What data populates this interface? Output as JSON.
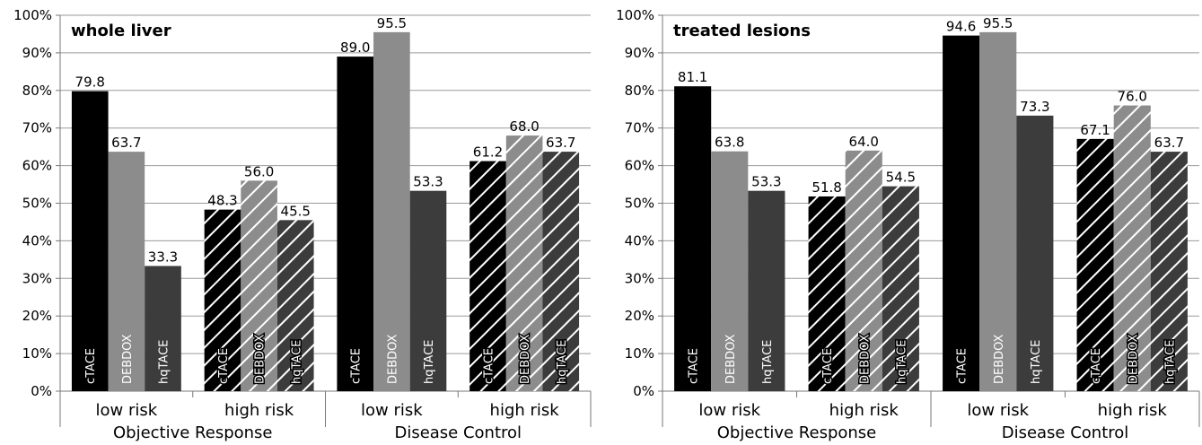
{
  "chart_data": [
    {
      "type": "bar",
      "title": "whole liver",
      "ylim": [
        0,
        100
      ],
      "y_ticks": [
        "0%",
        "10%",
        "20%",
        "30%",
        "40%",
        "50%",
        "60%",
        "70%",
        "80%",
        "90%",
        "100%"
      ],
      "series_labels": [
        "cTACE",
        "DEBDOX",
        "hqTACE"
      ],
      "groups": [
        {
          "category": "low risk",
          "outcome": "Objective Response",
          "pattern": "solid",
          "values": [
            79.8,
            63.7,
            33.3
          ],
          "labels": [
            "79.8",
            "63.7",
            "33.3"
          ]
        },
        {
          "category": "high risk",
          "outcome": "Objective Response",
          "pattern": "hatched",
          "values": [
            48.3,
            56.0,
            45.5
          ],
          "labels": [
            "48.3",
            "56.0",
            "45.5"
          ]
        },
        {
          "category": "low risk",
          "outcome": "Disease Control",
          "pattern": "solid",
          "values": [
            89.0,
            95.5,
            53.3
          ],
          "labels": [
            "89.0",
            "95.5",
            "53.3"
          ]
        },
        {
          "category": "high risk",
          "outcome": "Disease Control",
          "pattern": "hatched",
          "values": [
            61.2,
            68.0,
            63.7
          ],
          "labels": [
            "61.2",
            "68.0",
            "63.7"
          ]
        }
      ],
      "outcome_labels": [
        "Objective Response",
        "Disease Control"
      ],
      "colors": [
        "#000000",
        "#8c8c8c",
        "#3c3c3c"
      ],
      "grid": true
    },
    {
      "type": "bar",
      "title": "treated lesions",
      "ylim": [
        0,
        100
      ],
      "y_ticks": [
        "0%",
        "10%",
        "20%",
        "30%",
        "40%",
        "50%",
        "60%",
        "70%",
        "80%",
        "90%",
        "100%"
      ],
      "series_labels": [
        "cTACE",
        "DEBDOX",
        "hqTACE"
      ],
      "groups": [
        {
          "category": "low risk",
          "outcome": "Objective Response",
          "pattern": "solid",
          "values": [
            81.1,
            63.8,
            53.3
          ],
          "labels": [
            "81.1",
            "63.8",
            "53.3"
          ]
        },
        {
          "category": "high risk",
          "outcome": "Objective Response",
          "pattern": "hatched",
          "values": [
            51.8,
            64.0,
            54.5
          ],
          "labels": [
            "51.8",
            "64.0",
            "54.5"
          ]
        },
        {
          "category": "low risk",
          "outcome": "Disease Control",
          "pattern": "solid",
          "values": [
            94.6,
            95.5,
            73.3
          ],
          "labels": [
            "94.6",
            "95.5",
            "73.3"
          ]
        },
        {
          "category": "high risk",
          "outcome": "Disease Control",
          "pattern": "hatched",
          "values": [
            67.1,
            76.0,
            63.7
          ],
          "labels": [
            "67.1",
            "76.0",
            "63.7"
          ]
        }
      ],
      "outcome_labels": [
        "Objective Response",
        "Disease Control"
      ],
      "colors": [
        "#000000",
        "#8c8c8c",
        "#3c3c3c"
      ],
      "grid": true
    }
  ]
}
